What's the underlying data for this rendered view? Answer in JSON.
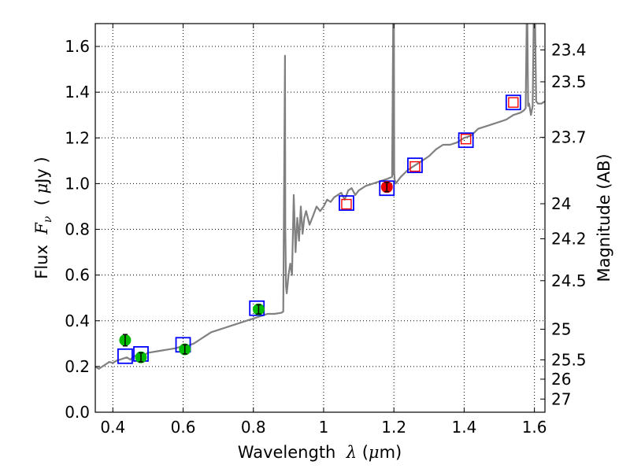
{
  "chart_data": {
    "type": "line",
    "title": "",
    "xlabel": {
      "prefix": "Wavelength  ",
      "symbol": "λ",
      "paren_open": " (",
      "unit_symbol": "μ",
      "unit_rest": "m)"
    },
    "ylabel": {
      "prefix": "Flux  ",
      "symbol": "F",
      "subscript": "ν",
      "paren_open": "  ( ",
      "unit_symbol": "μ",
      "unit_rest": "Jy )"
    },
    "y2label": "Magnitude (AB)",
    "xlim": [
      0.35,
      1.63
    ],
    "ylim": [
      0.0,
      1.7
    ],
    "xticks": [
      {
        "value": 0.4,
        "label": "0.4"
      },
      {
        "value": 0.6,
        "label": "0.6"
      },
      {
        "value": 0.8,
        "label": "0.8"
      },
      {
        "value": 1.0,
        "label": "1"
      },
      {
        "value": 1.2,
        "label": "1.2"
      },
      {
        "value": 1.4,
        "label": "1.4"
      },
      {
        "value": 1.6,
        "label": "1.6"
      }
    ],
    "yticks": [
      {
        "value": 0.0,
        "label": "0.0"
      },
      {
        "value": 0.2,
        "label": "0.2"
      },
      {
        "value": 0.4,
        "label": "0.4"
      },
      {
        "value": 0.6,
        "label": "0.6"
      },
      {
        "value": 0.8,
        "label": "0.8"
      },
      {
        "value": 1.0,
        "label": "1.0"
      },
      {
        "value": 1.2,
        "label": "1.2"
      },
      {
        "value": 1.4,
        "label": "1.4"
      },
      {
        "value": 1.6,
        "label": "1.6"
      }
    ],
    "mag_ticks": [
      {
        "value": 23.4,
        "label": "23.4"
      },
      {
        "value": 23.5,
        "label": "23.5"
      },
      {
        "value": 23.7,
        "label": "23.7"
      },
      {
        "value": 24.0,
        "label": "24"
      },
      {
        "value": 24.2,
        "label": "24.2"
      },
      {
        "value": 24.5,
        "label": "24.5"
      },
      {
        "value": 25.0,
        "label": "25"
      },
      {
        "value": 25.5,
        "label": "25.5"
      },
      {
        "value": 26.0,
        "label": "26"
      },
      {
        "value": 27.0,
        "label": "27"
      }
    ],
    "grid": true,
    "colors": {
      "spectrum": "#808080",
      "model_box": "#0000ff",
      "model_inner": "#ff0000",
      "obs_green": "#00bb00",
      "obs_red": "#ee0000",
      "errorbar": "#000000",
      "grid": "#000000"
    },
    "series": [
      {
        "name": "model spectrum",
        "kind": "line",
        "x": [
          0.35,
          0.36,
          0.37,
          0.38,
          0.39,
          0.4,
          0.41,
          0.42,
          0.43,
          0.44,
          0.45,
          0.46,
          0.47,
          0.48,
          0.49,
          0.5,
          0.52,
          0.54,
          0.56,
          0.58,
          0.6,
          0.61,
          0.62,
          0.63,
          0.64,
          0.65,
          0.66,
          0.68,
          0.7,
          0.72,
          0.74,
          0.76,
          0.78,
          0.8,
          0.82,
          0.84,
          0.86,
          0.88,
          0.885,
          0.89,
          0.891,
          0.893,
          0.895,
          0.897,
          0.9,
          0.905,
          0.91,
          0.915,
          0.92,
          0.925,
          0.93,
          0.935,
          0.94,
          0.945,
          0.95,
          0.96,
          0.97,
          0.98,
          0.99,
          1.0,
          1.01,
          1.02,
          1.03,
          1.04,
          1.05,
          1.06,
          1.07,
          1.08,
          1.09,
          1.1,
          1.12,
          1.14,
          1.16,
          1.18,
          1.195,
          1.198,
          1.199,
          1.2,
          1.201,
          1.202,
          1.205,
          1.22,
          1.24,
          1.26,
          1.28,
          1.3,
          1.32,
          1.34,
          1.36,
          1.38,
          1.4,
          1.42,
          1.44,
          1.46,
          1.48,
          1.5,
          1.52,
          1.54,
          1.56,
          1.57,
          1.575,
          1.578,
          1.58,
          1.582,
          1.585,
          1.59,
          1.595,
          1.598,
          1.6,
          1.602,
          1.605,
          1.61,
          1.62,
          1.63
        ],
        "y": [
          0.2,
          0.19,
          0.2,
          0.21,
          0.22,
          0.215,
          0.225,
          0.23,
          0.235,
          0.24,
          0.23,
          0.245,
          0.25,
          0.255,
          0.25,
          0.26,
          0.265,
          0.27,
          0.275,
          0.28,
          0.29,
          0.28,
          0.295,
          0.3,
          0.31,
          0.32,
          0.33,
          0.35,
          0.36,
          0.37,
          0.38,
          0.39,
          0.4,
          0.41,
          0.42,
          0.43,
          0.43,
          0.435,
          0.44,
          1.56,
          0.8,
          0.55,
          0.52,
          0.55,
          0.6,
          0.65,
          0.6,
          0.95,
          0.7,
          0.85,
          0.75,
          0.9,
          0.78,
          0.85,
          0.88,
          0.82,
          0.86,
          0.9,
          0.88,
          0.9,
          0.93,
          0.92,
          0.94,
          0.95,
          0.96,
          0.93,
          0.97,
          0.98,
          0.95,
          0.97,
          0.99,
          1.0,
          1.01,
          1.02,
          1.03,
          1.7,
          1.04,
          1.7,
          1.05,
          1.02,
          1.0,
          1.03,
          1.06,
          1.08,
          1.1,
          1.12,
          1.15,
          1.17,
          1.17,
          1.18,
          1.2,
          1.21,
          1.24,
          1.25,
          1.26,
          1.27,
          1.28,
          1.3,
          1.31,
          1.32,
          1.33,
          1.7,
          1.7,
          1.34,
          1.35,
          1.3,
          1.34,
          1.7,
          1.7,
          1.7,
          1.36,
          1.35,
          1.35,
          1.36
        ]
      },
      {
        "name": "model photometry",
        "kind": "open-square",
        "x": [
          0.435,
          0.48,
          0.6,
          0.81,
          1.065,
          1.18,
          1.26,
          1.405,
          1.54
        ],
        "y": [
          0.245,
          0.255,
          0.295,
          0.455,
          0.915,
          0.98,
          1.08,
          1.19,
          1.355
        ]
      },
      {
        "name": "observed photometry (green)",
        "kind": "filled-circle",
        "x": [
          0.435,
          0.48,
          0.605,
          0.815
        ],
        "y": [
          0.315,
          0.24,
          0.275,
          0.45
        ],
        "err": [
          0.025,
          0.02,
          0.02,
          0.02
        ]
      },
      {
        "name": "observed photometry (red)",
        "kind": "filled-circle",
        "x": [
          1.18
        ],
        "y": [
          0.985
        ],
        "err": [
          0.02
        ]
      },
      {
        "name": "upper limits",
        "kind": "red-open-square",
        "x": [
          1.065,
          1.26,
          1.405,
          1.54
        ],
        "y": [
          0.91,
          1.075,
          1.195,
          1.355
        ]
      }
    ]
  }
}
